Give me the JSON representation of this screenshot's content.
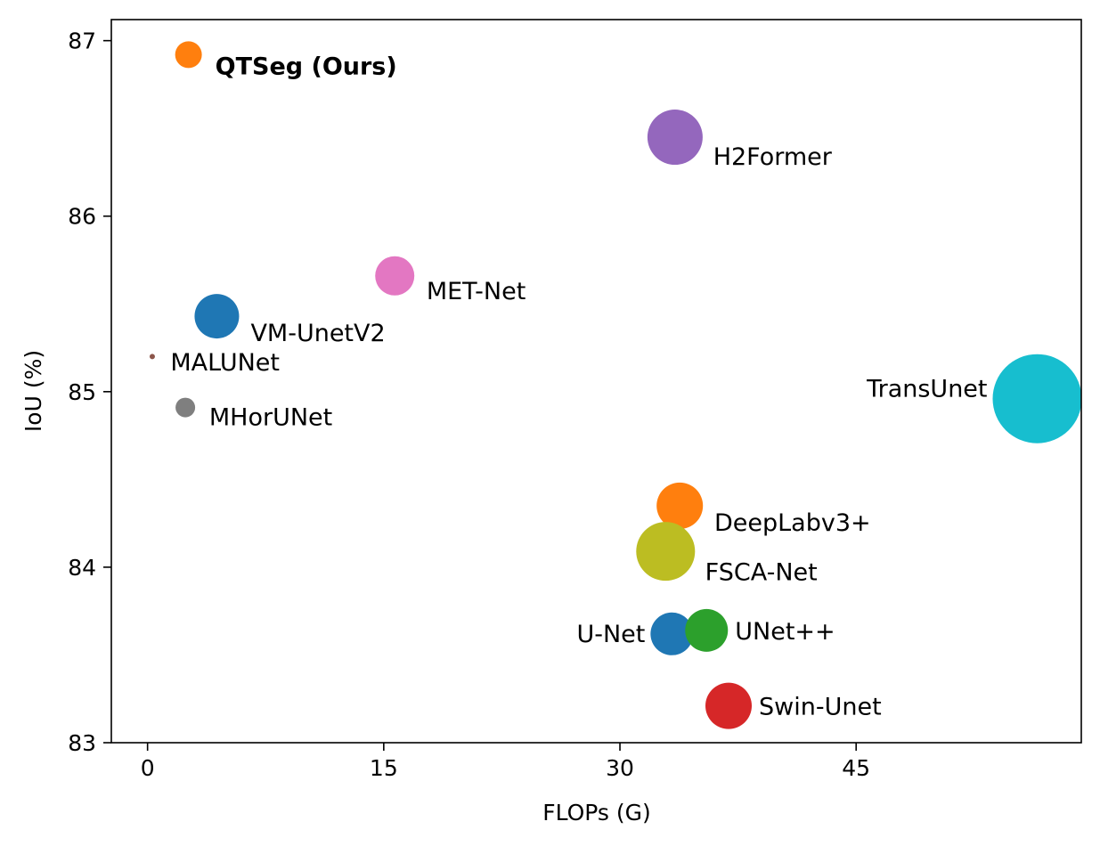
{
  "chart_data": {
    "type": "scatter",
    "title": "",
    "xlabel": "FLOPs (G)",
    "ylabel": "IoU (%)",
    "xlim": [
      -2.3,
      59.3
    ],
    "ylim": [
      83,
      87.12
    ],
    "xticks": [
      0,
      15,
      30,
      45
    ],
    "yticks": [
      83,
      84,
      85,
      86,
      87
    ],
    "grid": false,
    "legend": "none",
    "points": [
      {
        "label": "QTSeg (Ours)",
        "x": 2.6,
        "y": 86.92,
        "size": 15,
        "color": "#ff7f0e",
        "bold": true,
        "label_pos": "below-right"
      },
      {
        "label": "H2Former",
        "x": 33.5,
        "y": 86.45,
        "size": 31,
        "color": "#9467bd",
        "bold": false,
        "label_pos": "below-right"
      },
      {
        "label": "MET-Net",
        "x": 15.7,
        "y": 85.66,
        "size": 22,
        "color": "#e377c2",
        "bold": false,
        "label_pos": "below-right"
      },
      {
        "label": "VM-UnetV2",
        "x": 4.4,
        "y": 85.43,
        "size": 25,
        "color": "#1f77b4",
        "bold": false,
        "label_pos": "below-right"
      },
      {
        "label": "MALUNet",
        "x": 0.3,
        "y": 85.2,
        "size": 3,
        "color": "#8c564b",
        "bold": false,
        "label_pos": "below-right"
      },
      {
        "label": "MHorUNet",
        "x": 2.4,
        "y": 84.91,
        "size": 11,
        "color": "#7f7f7f",
        "bold": false,
        "label_pos": "below-right"
      },
      {
        "label": "TransUnet",
        "x": 56.5,
        "y": 84.96,
        "size": 50,
        "color": "#17becf",
        "bold": false,
        "label_pos": "left"
      },
      {
        "label": "DeepLabv3+",
        "x": 33.8,
        "y": 84.35,
        "size": 26,
        "color": "#ff7f0e",
        "bold": false,
        "label_pos": "below-right"
      },
      {
        "label": "FSCA-Net",
        "x": 32.9,
        "y": 84.09,
        "size": 33,
        "color": "#bcbd22",
        "bold": false,
        "label_pos": "below-right"
      },
      {
        "label": "U-Net",
        "x": 33.3,
        "y": 83.62,
        "size": 24,
        "color": "#1f77b4",
        "bold": false,
        "label_pos": "left"
      },
      {
        "label": "UNet++",
        "x": 35.5,
        "y": 83.64,
        "size": 24,
        "color": "#2ca02c",
        "bold": false,
        "label_pos": "right"
      },
      {
        "label": "Swin-Unet",
        "x": 36.9,
        "y": 83.21,
        "size": 26,
        "color": "#d62728",
        "bold": false,
        "label_pos": "right"
      }
    ]
  }
}
